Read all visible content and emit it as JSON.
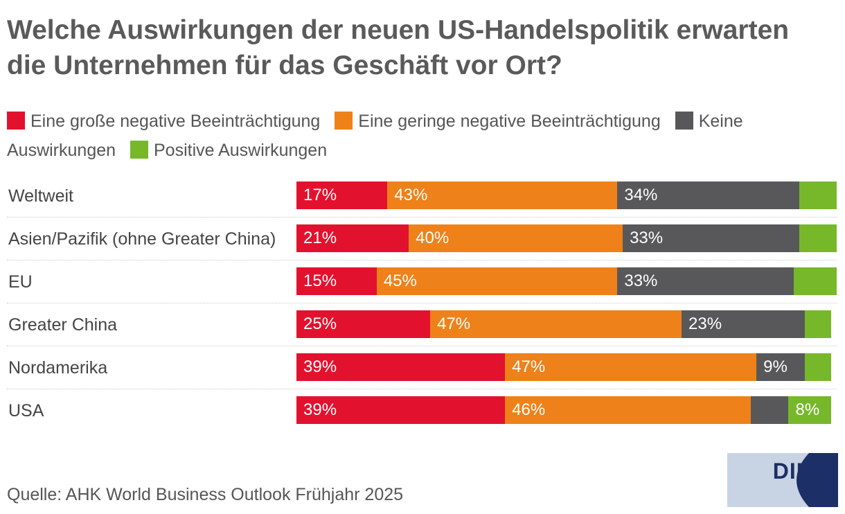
{
  "chart_data": {
    "type": "bar",
    "orientation": "horizontal",
    "stacked": true,
    "title": "Welche Auswirkungen der neuen US-Handelspolitik erwarten die Unternehmen für das Geschäft vor Ort?",
    "categories": [
      "Weltweit",
      "Asien/Pazifik (ohne Greater China)",
      "EU",
      "Greater China",
      "Nordamerika",
      "USA"
    ],
    "series": [
      {
        "name": "Eine große negative Beeinträchtigung",
        "color": "#e2122e",
        "values": [
          17,
          21,
          15,
          25,
          39,
          39
        ],
        "labels": [
          "17%",
          "21%",
          "15%",
          "25%",
          "39%",
          "39%"
        ]
      },
      {
        "name": "Eine geringe negative Beeinträchtigung",
        "color": "#ee8119",
        "values": [
          43,
          40,
          45,
          47,
          47,
          46
        ],
        "labels": [
          "43%",
          "40%",
          "45%",
          "47%",
          "47%",
          "46%"
        ]
      },
      {
        "name": "Keine Auswirkungen",
        "color": "#58585a",
        "values": [
          34,
          33,
          33,
          23,
          9,
          7
        ],
        "labels": [
          "34%",
          "33%",
          "33%",
          "23%",
          "9%",
          ""
        ]
      },
      {
        "name": "Positive Auswirkungen",
        "color": "#76b82a",
        "values": [
          7,
          7,
          8,
          5,
          5,
          8
        ],
        "labels": [
          "",
          "",
          "",
          "",
          "",
          "8%"
        ]
      }
    ],
    "xlim": [
      0,
      101
    ],
    "legend_position": "top"
  },
  "source": "Quelle: AHK World Business Outlook Frühjahr 2025",
  "logo": {
    "text": "DIHK",
    "bg_color": "#c8d4e3",
    "fg_color": "#1c2f66"
  }
}
